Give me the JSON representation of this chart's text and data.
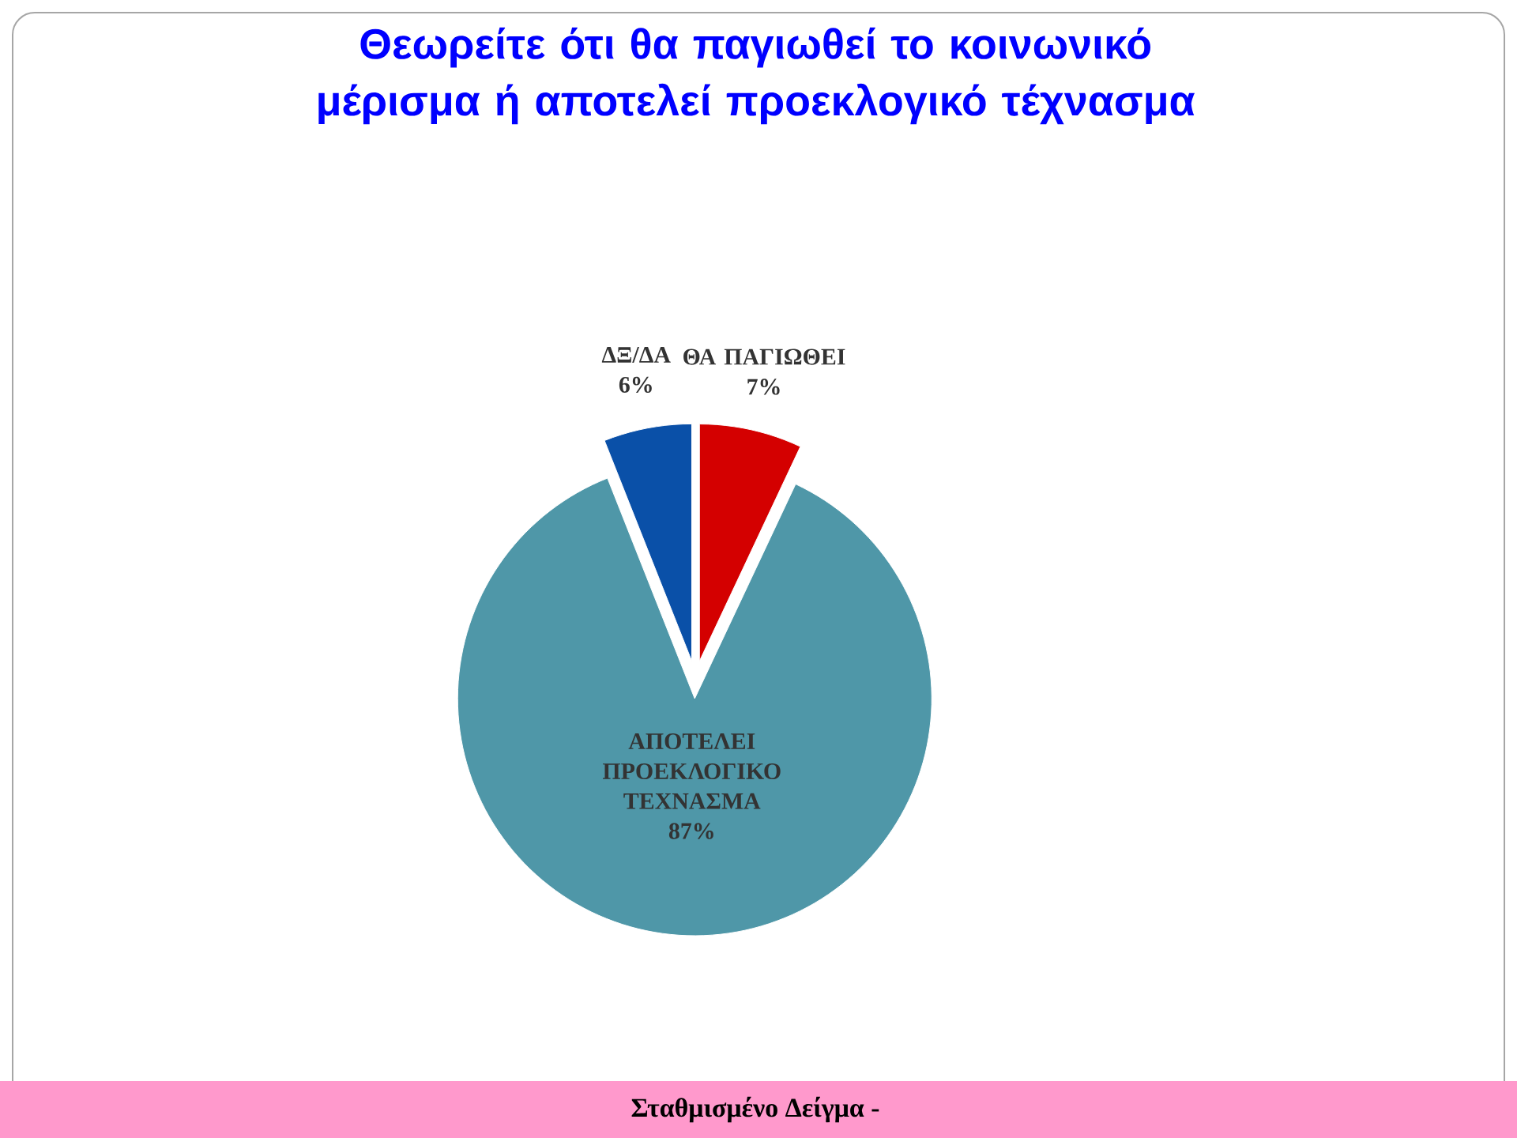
{
  "chart_data": {
    "type": "pie",
    "title": "Θεωρείτε ότι θα παγιωθεί το κοινωνικό μέρισμα ή αποτελεί προεκλογικό τέχνασμα",
    "categories": [
      "ΘΑ ΠΑΓΙΩΘΕΙ",
      "ΑΠΟΤΕΛΕΙ ΠΡΟΕΚΛΟΓΙΚΟ ΤΕΧΝΑΣΜΑ",
      "ΔΞ/ΔΑ"
    ],
    "values": [
      7,
      87,
      6
    ],
    "colors": [
      "#d40000",
      "#4f97a8",
      "#0a50a8"
    ],
    "value_labels": [
      "7%",
      "87%",
      "6%"
    ],
    "annotations": [
      "Σταθμισμένο Δείγμα -"
    ]
  }
}
